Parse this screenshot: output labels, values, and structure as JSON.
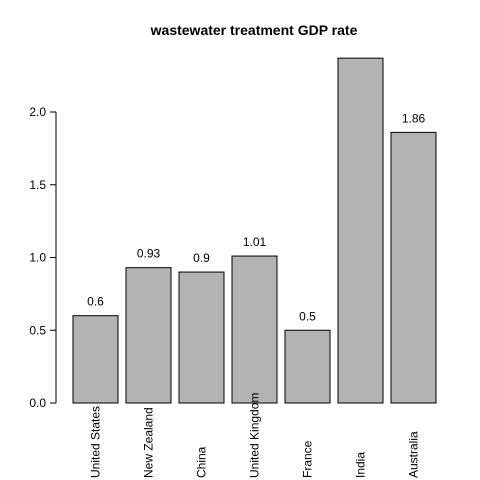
{
  "chart_data": {
    "type": "bar",
    "title": "wastewater treatment GDP rate",
    "xlabel": "",
    "ylabel": "",
    "categories": [
      "United States",
      "New Zealand",
      "China",
      "United Kingdom",
      "France",
      "India",
      "Australia"
    ],
    "values": [
      0.6,
      0.93,
      0.9,
      1.01,
      0.5,
      2.37,
      1.86
    ],
    "data_labels": [
      "0.6",
      "0.93",
      "0.9",
      "1.01",
      "0.5",
      "",
      "1.86"
    ],
    "yticks": [
      "0.0",
      "0.5",
      "1.0",
      "1.5",
      "2.0"
    ],
    "ylim": [
      0,
      2.37
    ],
    "bar_color": "#b3b3b3",
    "grid": false,
    "legend": "none"
  }
}
